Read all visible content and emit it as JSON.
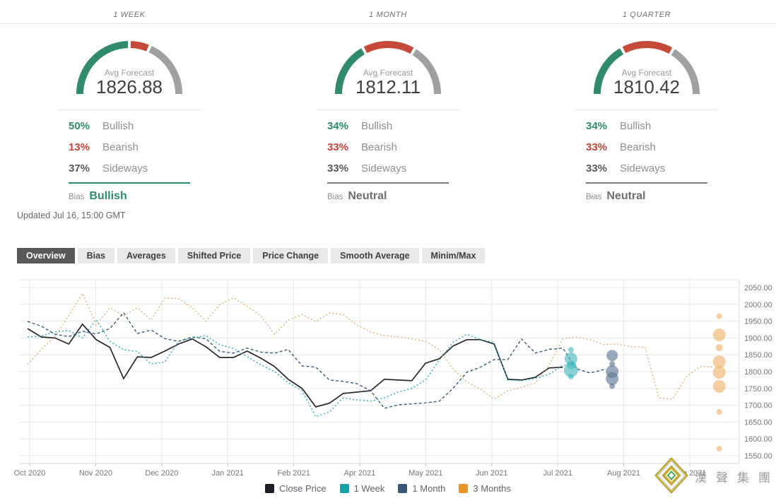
{
  "colors": {
    "bullish": "#2e8b6e",
    "bearish": "#c2463a",
    "sideways": "#5a5a5a",
    "neutral_bias": "#6e6e6e",
    "gauge_green": "#318a6c",
    "gauge_red": "#c64a3a",
    "gauge_gray": "#a0a0a0",
    "active_tab_bg": "#57585a",
    "grid": "#e8e8e8",
    "axis": "#d9d9d9",
    "tick_label": "#757575"
  },
  "forecast_panels": [
    {
      "period": "1 WEEK",
      "avg_label": "Avg Forecast",
      "avg_value": "1826.88",
      "gauge": {
        "bullish": 50,
        "bearish": 13,
        "sideways": 37
      },
      "rows": [
        {
          "pct": "50%",
          "label": "Bullish",
          "type": "bullish"
        },
        {
          "pct": "13%",
          "label": "Bearish",
          "type": "bearish"
        },
        {
          "pct": "37%",
          "label": "Sideways",
          "type": "sideways"
        }
      ],
      "bias_label": "Bias",
      "bias_value": "Bullish",
      "bias_type": "bullish"
    },
    {
      "period": "1 MONTH",
      "avg_label": "Avg Forecast",
      "avg_value": "1812.11",
      "gauge": {
        "bullish": 34,
        "bearish": 33,
        "sideways": 33
      },
      "rows": [
        {
          "pct": "34%",
          "label": "Bullish",
          "type": "bullish"
        },
        {
          "pct": "33%",
          "label": "Bearish",
          "type": "bearish"
        },
        {
          "pct": "33%",
          "label": "Sideways",
          "type": "sideways"
        }
      ],
      "bias_label": "Bias",
      "bias_value": "Neutral",
      "bias_type": "neutral"
    },
    {
      "period": "1 QUARTER",
      "avg_label": "Avg Forecast",
      "avg_value": "1810.42",
      "gauge": {
        "bullish": 34,
        "bearish": 33,
        "sideways": 33
      },
      "rows": [
        {
          "pct": "34%",
          "label": "Bullish",
          "type": "bullish"
        },
        {
          "pct": "33%",
          "label": "Bearish",
          "type": "bearish"
        },
        {
          "pct": "33%",
          "label": "Sideways",
          "type": "sideways"
        }
      ],
      "bias_label": "Bias",
      "bias_value": "Neutral",
      "bias_type": "neutral"
    }
  ],
  "updated": "Updated Jul 16, 15:00 GMT",
  "tabs": [
    {
      "label": "Overview",
      "active": true
    },
    {
      "label": "Bias",
      "active": false
    },
    {
      "label": "Averages",
      "active": false
    },
    {
      "label": "Shifted Price",
      "active": false
    },
    {
      "label": "Price Change",
      "active": false
    },
    {
      "label": "Smooth Average",
      "active": false
    },
    {
      "label": "Minim/Max",
      "active": false
    }
  ],
  "chart_data": {
    "type": "line",
    "title": "",
    "xlabel": "",
    "ylabel": "",
    "grid": true,
    "legend_position": "bottom",
    "y_min": 1550,
    "y_max": 2050,
    "y_step": 50,
    "y_tick_labels": [
      "2050.00",
      "2000.00",
      "1950.00",
      "1900.00",
      "1850.00",
      "1800.00",
      "1750.00",
      "1700.00",
      "1650.00",
      "1600.00",
      "1550.00"
    ],
    "x_ticks": [
      "Oct 2020",
      "Nov 2020",
      "Dec 2020",
      "Jan 2021",
      "Feb 2021",
      "Apr 2021",
      "May 2021",
      "Jun 2021",
      "Jul 2021",
      "Aug 2021",
      "Sep 2021"
    ],
    "weeks_per_month": 4.81,
    "series": [
      {
        "name": "Close Price",
        "color": "#26262c",
        "legend_color": "#1e1e24",
        "style": "solid",
        "start_week": 0,
        "values": [
          1928,
          1903,
          1900,
          1882,
          1941,
          1895,
          1872,
          1779,
          1844,
          1842,
          1861,
          1882,
          1897,
          1874,
          1842,
          1842,
          1861,
          1840,
          1815,
          1777,
          1750,
          1695,
          1706,
          1735,
          1739,
          1743,
          1777,
          1775,
          1773,
          1825,
          1838,
          1876,
          1895,
          1895,
          1882,
          1777,
          1775,
          1783,
          1811,
          1813
        ]
      },
      {
        "name": "1 Week",
        "color": "#2aa9ac",
        "legend_color": "#18a1a5",
        "style": "dotted",
        "start_week": 0,
        "values": [
          1903,
          1906,
          1918,
          1922,
          1900,
          1955,
          1890,
          1865,
          1860,
          1823,
          1828,
          1890,
          1900,
          1907,
          1880,
          1869,
          1845,
          1820,
          1800,
          1767,
          1743,
          1666,
          1680,
          1722,
          1716,
          1712,
          1722,
          1739,
          1750,
          1775,
          1834,
          1887,
          1911,
          1895,
          1887,
          1775,
          1773,
          1780,
          1792,
          1819,
          1822
        ]
      },
      {
        "name": "1 Month",
        "color": "#3d5a77",
        "legend_color": "#3a5774",
        "style": "dashed",
        "start_week": 0,
        "values": [
          1949,
          1935,
          1911,
          1904,
          1920,
          1912,
          1928,
          1975,
          1913,
          1924,
          1898,
          1890,
          1903,
          1898,
          1860,
          1855,
          1870,
          1858,
          1855,
          1866,
          1817,
          1813,
          1775,
          1771,
          1764,
          1743,
          1691,
          1701,
          1704,
          1707,
          1712,
          1750,
          1798,
          1813,
          1836,
          1836,
          1897,
          1855,
          1866,
          1870,
          1808,
          1796,
          1806
        ]
      },
      {
        "name": "3 Months",
        "color": "#dcb182",
        "legend_color": "#e8932c",
        "style": "dotted",
        "start_week": 0,
        "values": [
          1821,
          1866,
          1904,
          1966,
          2033,
          1939,
          1990,
          1966,
          1990,
          1953,
          2019,
          2017,
          1990,
          1950,
          2000,
          2019,
          1995,
          1966,
          1911,
          1953,
          1970,
          1949,
          1974,
          1970,
          1939,
          1918,
          1907,
          1904,
          1897,
          1890,
          1865,
          1808,
          1770,
          1748,
          1718,
          1743,
          1754,
          1766,
          1819,
          1898,
          1903,
          1895,
          1880,
          1882,
          1874,
          1872,
          1722,
          1718,
          1785,
          1815,
          1813
        ]
      }
    ],
    "forecast_dots": [
      {
        "series": "1 Week",
        "color": "#45b8bb",
        "week": 39.6,
        "points": [
          [
            1865,
            4
          ],
          [
            1838,
            9
          ],
          [
            1820,
            6
          ],
          [
            1804,
            10
          ],
          [
            1785,
            4
          ]
        ]
      },
      {
        "series": "1 Month",
        "color": "#5a7390",
        "week": 42.6,
        "points": [
          [
            1848,
            8
          ],
          [
            1823,
            4
          ],
          [
            1800,
            9
          ],
          [
            1779,
            9
          ],
          [
            1757,
            4
          ]
        ]
      },
      {
        "series": "3 Months",
        "color": "#eeb269",
        "week": 50.4,
        "points": [
          [
            1965,
            4
          ],
          [
            1909,
            9
          ],
          [
            1871,
            5
          ],
          [
            1829,
            9
          ],
          [
            1798,
            9
          ],
          [
            1756,
            9
          ],
          [
            1680,
            4
          ],
          [
            1571,
            4
          ]
        ]
      }
    ]
  },
  "logo": {
    "text": "漢聲集團"
  }
}
